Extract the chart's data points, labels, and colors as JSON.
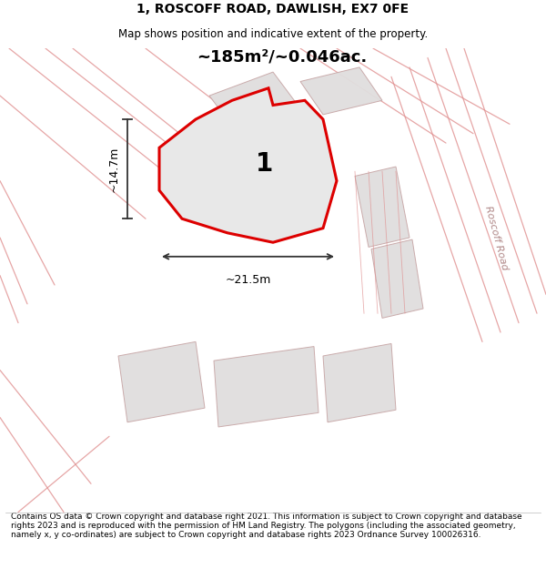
{
  "title": "1, ROSCOFF ROAD, DAWLISH, EX7 0FE",
  "subtitle": "Map shows position and indicative extent of the property.",
  "area_label": "~185m²/~0.046ac.",
  "width_label": "~21.5m",
  "height_label": "~14.7m",
  "plot_number": "1",
  "footer": "Contains OS data © Crown copyright and database right 2021. This information is subject to Crown copyright and database rights 2023 and is reproduced with the permission of HM Land Registry. The polygons (including the associated geometry, namely x, y co-ordinates) are subject to Crown copyright and database rights 2023 Ordnance Survey 100026316.",
  "background_color": "#ffffff",
  "map_bg_color": "#faf7f7",
  "plot_fill_color": "#e8e8e8",
  "plot_edge_color": "#dd0000",
  "neighbor_fill_color": "#e0dede",
  "neighbor_edge_color": "#c8a8a8",
  "road_line_color": "#e09090",
  "dimension_line_color": "#333333",
  "text_color": "#000000",
  "road_label_color": "#b08888",
  "title_fontsize": 10,
  "subtitle_fontsize": 8.5,
  "footer_fontsize": 6.5,
  "area_fontsize": 13,
  "dim_fontsize": 9,
  "plot_num_fontsize": 20
}
